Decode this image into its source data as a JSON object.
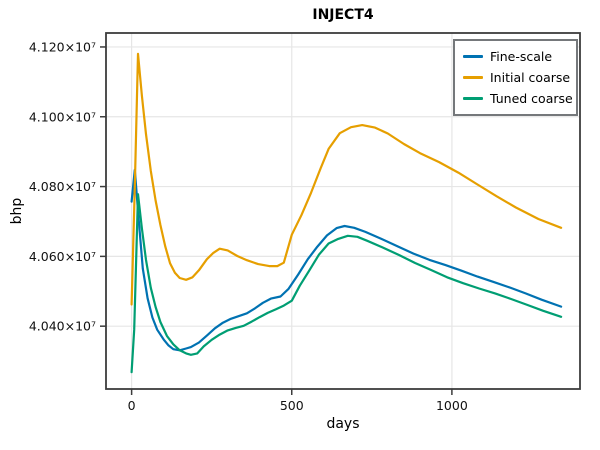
{
  "figure": {
    "title": "INJECT4",
    "xlabel": "days",
    "ylabel": "bhp"
  },
  "legend": {
    "position": "top-right",
    "border_color": "#75787b",
    "entries": [
      {
        "label": "Fine-scale",
        "color": "#0072B2"
      },
      {
        "label": "Initial coarse",
        "color": "#E69F00"
      },
      {
        "label": "Tuned coarse",
        "color": "#009E73"
      }
    ]
  },
  "chart_data": {
    "type": "line",
    "title": "INJECT4",
    "xlabel": "days",
    "ylabel": "bhp",
    "xlim": [
      -80,
      1400
    ],
    "ylim": [
      40220000,
      41240000
    ],
    "grid": true,
    "legend_position": "top-right inside",
    "x_ticks": {
      "values": [
        0,
        500,
        1000
      ],
      "labels": [
        "0",
        "500",
        "1000"
      ]
    },
    "y_ticks": {
      "values": [
        40400000,
        40600000,
        40800000,
        41000000,
        41200000
      ],
      "labels": [
        "4.040×10⁷",
        "4.060×10⁷",
        "4.080×10⁷",
        "4.100×10⁷",
        "4.120×10⁷"
      ]
    },
    "colors": {
      "grid": "#e6e6e6",
      "spine": "#3c3c3c",
      "tick_label": "#111111"
    },
    "series": [
      {
        "name": "Fine-scale",
        "color": "#0072B2",
        "points": [
          [
            0,
            40757000
          ],
          [
            10,
            40848000
          ],
          [
            22,
            40705000
          ],
          [
            35,
            40565000
          ],
          [
            50,
            40480000
          ],
          [
            65,
            40425000
          ],
          [
            80,
            40390000
          ],
          [
            100,
            40362000
          ],
          [
            115,
            40345000
          ],
          [
            130,
            40334000
          ],
          [
            150,
            40331000
          ],
          [
            170,
            40336000
          ],
          [
            185,
            40340000
          ],
          [
            210,
            40353000
          ],
          [
            235,
            40373000
          ],
          [
            260,
            40394000
          ],
          [
            285,
            40410000
          ],
          [
            310,
            40421000
          ],
          [
            335,
            40429000
          ],
          [
            360,
            40437000
          ],
          [
            385,
            40451000
          ],
          [
            410,
            40467000
          ],
          [
            435,
            40479000
          ],
          [
            465,
            40485000
          ],
          [
            490,
            40507000
          ],
          [
            520,
            40548000
          ],
          [
            550,
            40592000
          ],
          [
            580,
            40628000
          ],
          [
            610,
            40660000
          ],
          [
            640,
            40681000
          ],
          [
            665,
            40687000
          ],
          [
            695,
            40682000
          ],
          [
            730,
            40670000
          ],
          [
            780,
            40650000
          ],
          [
            830,
            40629000
          ],
          [
            880,
            40608000
          ],
          [
            930,
            40590000
          ],
          [
            980,
            40575000
          ],
          [
            1030,
            40559000
          ],
          [
            1080,
            40542000
          ],
          [
            1130,
            40527000
          ],
          [
            1180,
            40511000
          ],
          [
            1230,
            40494000
          ],
          [
            1280,
            40476000
          ],
          [
            1341,
            40456000
          ]
        ]
      },
      {
        "name": "Initial coarse",
        "color": "#E69F00",
        "points": [
          [
            0,
            40462000
          ],
          [
            10,
            40800000
          ],
          [
            20,
            41180000
          ],
          [
            32,
            41060000
          ],
          [
            45,
            40950000
          ],
          [
            60,
            40845000
          ],
          [
            75,
            40760000
          ],
          [
            90,
            40690000
          ],
          [
            105,
            40628000
          ],
          [
            120,
            40580000
          ],
          [
            135,
            40553000
          ],
          [
            150,
            40538000
          ],
          [
            170,
            40533000
          ],
          [
            190,
            40540000
          ],
          [
            210,
            40560000
          ],
          [
            235,
            40592000
          ],
          [
            255,
            40610000
          ],
          [
            275,
            40622000
          ],
          [
            300,
            40617000
          ],
          [
            330,
            40601000
          ],
          [
            360,
            40589000
          ],
          [
            395,
            40578000
          ],
          [
            430,
            40572000
          ],
          [
            455,
            40572000
          ],
          [
            475,
            40582000
          ],
          [
            500,
            40662000
          ],
          [
            530,
            40718000
          ],
          [
            560,
            40782000
          ],
          [
            590,
            40852000
          ],
          [
            615,
            40908000
          ],
          [
            650,
            40953000
          ],
          [
            685,
            40970000
          ],
          [
            720,
            40976000
          ],
          [
            760,
            40969000
          ],
          [
            800,
            40952000
          ],
          [
            850,
            40922000
          ],
          [
            900,
            40896000
          ],
          [
            960,
            40870000
          ],
          [
            1020,
            40840000
          ],
          [
            1080,
            40806000
          ],
          [
            1140,
            40772000
          ],
          [
            1200,
            40740000
          ],
          [
            1270,
            40707000
          ],
          [
            1341,
            40682000
          ]
        ]
      },
      {
        "name": "Tuned coarse",
        "color": "#009E73",
        "points": [
          [
            0,
            40268000
          ],
          [
            8,
            40390000
          ],
          [
            20,
            40778000
          ],
          [
            32,
            40680000
          ],
          [
            45,
            40590000
          ],
          [
            60,
            40510000
          ],
          [
            75,
            40455000
          ],
          [
            90,
            40412000
          ],
          [
            110,
            40372000
          ],
          [
            130,
            40348000
          ],
          [
            150,
            40331000
          ],
          [
            170,
            40322000
          ],
          [
            185,
            40318000
          ],
          [
            205,
            40322000
          ],
          [
            225,
            40342000
          ],
          [
            250,
            40361000
          ],
          [
            275,
            40376000
          ],
          [
            300,
            40388000
          ],
          [
            325,
            40395000
          ],
          [
            350,
            40401000
          ],
          [
            375,
            40413000
          ],
          [
            400,
            40426000
          ],
          [
            425,
            40438000
          ],
          [
            450,
            40448000
          ],
          [
            475,
            40459000
          ],
          [
            500,
            40473000
          ],
          [
            525,
            40516000
          ],
          [
            555,
            40560000
          ],
          [
            585,
            40605000
          ],
          [
            615,
            40637000
          ],
          [
            645,
            40650000
          ],
          [
            675,
            40659000
          ],
          [
            705,
            40656000
          ],
          [
            735,
            40645000
          ],
          [
            785,
            40625000
          ],
          [
            835,
            40604000
          ],
          [
            885,
            40581000
          ],
          [
            935,
            40561000
          ],
          [
            985,
            40540000
          ],
          [
            1035,
            40523000
          ],
          [
            1085,
            40508000
          ],
          [
            1135,
            40494000
          ],
          [
            1185,
            40478000
          ],
          [
            1235,
            40461000
          ],
          [
            1285,
            40444000
          ],
          [
            1341,
            40427000
          ]
        ]
      }
    ]
  }
}
